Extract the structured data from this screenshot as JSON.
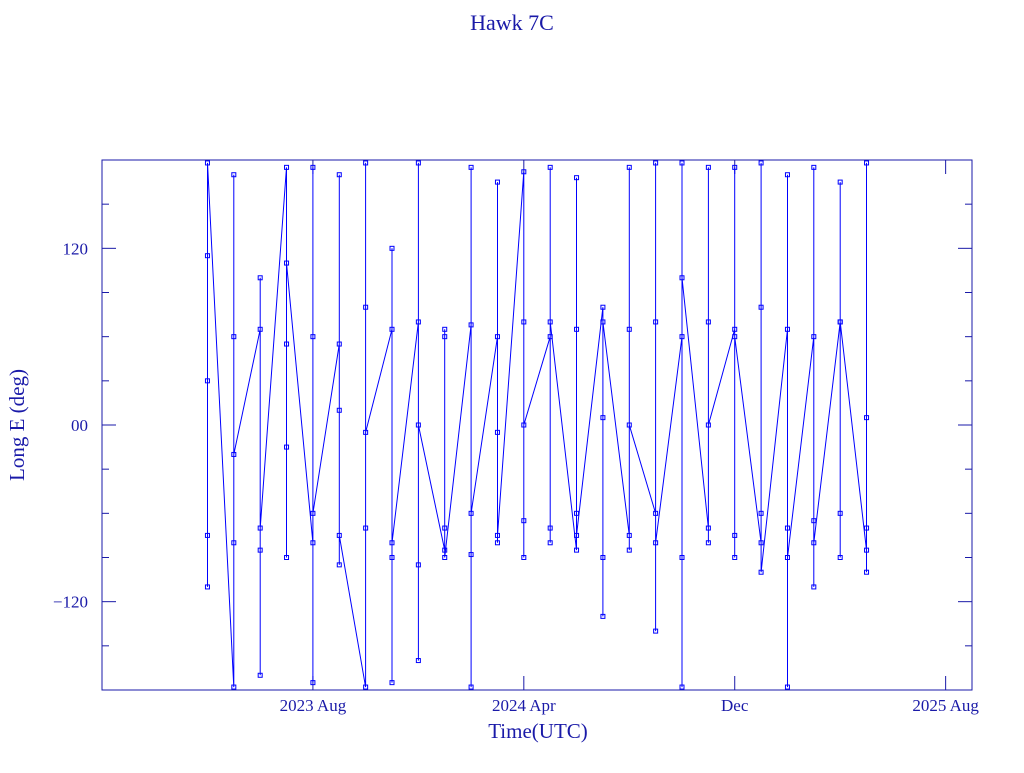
{
  "chart_data": {
    "type": "line",
    "title": "Hawk 7C",
    "x_label": "Time(UTC)",
    "y_label": "Long E (deg)",
    "color": "#0000ff",
    "marker": "square",
    "xlim": [
      "2022-12",
      "2025-09"
    ],
    "xticks": [
      {
        "value": "2023-08",
        "label": "2023 Aug"
      },
      {
        "value": "2024-04",
        "label": "2024 Apr"
      },
      {
        "value": "2024-12",
        "label": "Dec"
      },
      {
        "value": "2025-08",
        "label": "2025 Aug"
      }
    ],
    "ylim": [
      -180,
      180
    ],
    "yticks": [
      {
        "value": -120,
        "label": "−120"
      },
      {
        "value": 0,
        "label": "00"
      },
      120
    ],
    "yminorticks": [
      -150,
      -90,
      -60,
      -30,
      30,
      60,
      90,
      150
    ],
    "x": [
      "2023-04",
      "2023-04",
      "2023-04",
      "2023-04",
      "2023-04",
      "2023-05",
      "2023-05",
      "2023-05",
      "2023-05",
      "2023-05",
      "2023-06",
      "2023-06",
      "2023-06",
      "2023-06",
      "2023-06",
      "2023-07",
      "2023-07",
      "2023-07",
      "2023-07",
      "2023-07",
      "2023-08",
      "2023-08",
      "2023-08",
      "2023-08",
      "2023-08",
      "2023-09",
      "2023-09",
      "2023-09",
      "2023-09",
      "2023-09",
      "2023-10",
      "2023-10",
      "2023-10",
      "2023-10",
      "2023-10",
      "2023-11",
      "2023-11",
      "2023-11",
      "2023-11",
      "2023-11",
      "2023-12",
      "2023-12",
      "2023-12",
      "2023-12",
      "2023-12",
      "2024-01",
      "2024-01",
      "2024-01",
      "2024-01",
      "2024-01",
      "2024-02",
      "2024-02",
      "2024-02",
      "2024-02",
      "2024-02",
      "2024-03",
      "2024-03",
      "2024-03",
      "2024-03",
      "2024-03",
      "2024-04",
      "2024-04",
      "2024-04",
      "2024-04",
      "2024-04",
      "2024-05",
      "2024-05",
      "2024-05",
      "2024-05",
      "2024-05",
      "2024-06",
      "2024-06",
      "2024-06",
      "2024-06",
      "2024-06",
      "2024-07",
      "2024-07",
      "2024-07",
      "2024-07",
      "2024-07",
      "2024-08",
      "2024-08",
      "2024-08",
      "2024-08",
      "2024-08",
      "2024-09",
      "2024-09",
      "2024-09",
      "2024-09",
      "2024-09",
      "2024-10",
      "2024-10",
      "2024-10",
      "2024-10",
      "2024-10",
      "2024-11",
      "2024-11",
      "2024-11",
      "2024-11",
      "2024-11",
      "2024-12",
      "2024-12",
      "2024-12",
      "2024-12",
      "2024-12",
      "2025-01",
      "2025-01",
      "2025-01",
      "2025-01",
      "2025-01",
      "2025-02",
      "2025-02",
      "2025-02",
      "2025-02",
      "2025-02",
      "2025-03",
      "2025-03",
      "2025-03",
      "2025-03",
      "2025-03",
      "2025-04",
      "2025-04",
      "2025-04",
      "2025-04",
      "2025-04",
      "2025-05",
      "2025-05",
      "2025-05",
      "2025-05",
      "2025-05"
    ],
    "values": [
      30,
      -110,
      115,
      -75,
      178,
      -178,
      60,
      -80,
      170,
      -20,
      65,
      -85,
      100,
      -170,
      -70,
      175,
      -90,
      55,
      -15,
      110,
      -80,
      60,
      175,
      -175,
      -60,
      55,
      -95,
      170,
      10,
      -75,
      -178,
      80,
      -70,
      178,
      -5,
      65,
      -90,
      120,
      -175,
      -80,
      70,
      -95,
      178,
      -160,
      0,
      -85,
      60,
      -70,
      65,
      -90,
      68,
      -88,
      175,
      -178,
      -60,
      60,
      -80,
      165,
      -5,
      -75,
      172,
      -90,
      70,
      -65,
      0,
      60,
      -70,
      175,
      -80,
      70,
      -85,
      65,
      -60,
      168,
      -75,
      80,
      -90,
      5,
      -130,
      70,
      -75,
      175,
      -85,
      65,
      0,
      -60,
      70,
      -140,
      178,
      -80,
      60,
      -178,
      178,
      -90,
      100,
      -70,
      70,
      175,
      -80,
      0,
      65,
      -75,
      175,
      -90,
      60,
      -80,
      178,
      -60,
      80,
      -100,
      65,
      -70,
      170,
      -178,
      -90,
      60,
      -65,
      175,
      -110,
      -80,
      70,
      -90,
      165,
      -60,
      70,
      -85,
      178,
      -70,
      -100,
      5
    ]
  }
}
